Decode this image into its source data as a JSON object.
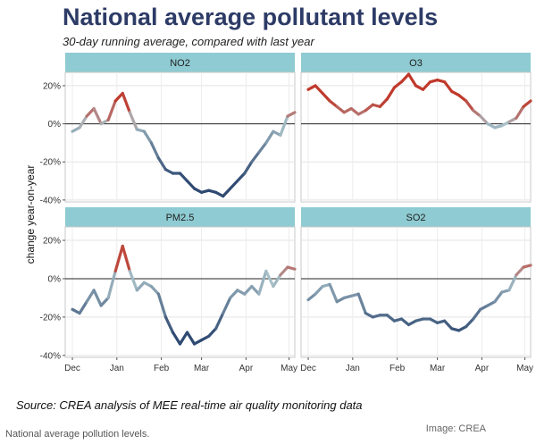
{
  "header": {
    "title": "National average pollutant levels",
    "subtitle": "30-day running average, compared with last year"
  },
  "footer": {
    "source": "Source: CREA analysis of MEE real-time air quality monitoring data",
    "caption": "National average pollution levels.",
    "credit": "Image: CREA"
  },
  "chart_data": {
    "type": "line",
    "ylabel": "change year-on-year",
    "ylim": [
      -0.41,
      0.27
    ],
    "yticks": [
      0.2,
      0,
      -0.2,
      -0.4
    ],
    "ytick_labels": [
      "20%",
      "0%",
      "-20%",
      "-40%"
    ],
    "xlim": [
      0,
      160
    ],
    "xticks": [
      5,
      36,
      67,
      95,
      126,
      156
    ],
    "xtick_labels": [
      "Dec",
      "Jan",
      "Feb",
      "Mar",
      "Apr",
      "May"
    ],
    "color_scale": {
      "low": "#2f4a72",
      "mid": "#a8c0c8",
      "high": "#c0392b"
    },
    "zero_line": true,
    "panels": [
      {
        "name": "NO2",
        "x": [
          5,
          10,
          15,
          20,
          25,
          30,
          35,
          40,
          45,
          50,
          55,
          60,
          65,
          70,
          75,
          80,
          85,
          90,
          95,
          100,
          105,
          110,
          115,
          120,
          125,
          130,
          135,
          140,
          145,
          150,
          155,
          160
        ],
        "y": [
          -0.04,
          -0.02,
          0.04,
          0.08,
          0.0,
          0.02,
          0.12,
          0.16,
          0.06,
          -0.03,
          -0.04,
          -0.1,
          -0.18,
          -0.24,
          -0.26,
          -0.26,
          -0.3,
          -0.34,
          -0.36,
          -0.35,
          -0.36,
          -0.38,
          -0.34,
          -0.3,
          -0.26,
          -0.2,
          -0.15,
          -0.1,
          -0.04,
          -0.06,
          0.04,
          0.06
        ]
      },
      {
        "name": "O3",
        "x": [
          5,
          10,
          15,
          20,
          25,
          30,
          35,
          40,
          45,
          50,
          55,
          60,
          65,
          70,
          75,
          80,
          85,
          90,
          95,
          100,
          105,
          110,
          115,
          120,
          125,
          130,
          135,
          140,
          145,
          150,
          155,
          160
        ],
        "y": [
          0.18,
          0.2,
          0.16,
          0.12,
          0.09,
          0.06,
          0.08,
          0.05,
          0.07,
          0.1,
          0.09,
          0.13,
          0.19,
          0.22,
          0.26,
          0.2,
          0.18,
          0.22,
          0.23,
          0.22,
          0.17,
          0.15,
          0.12,
          0.07,
          0.04,
          0.0,
          -0.02,
          -0.01,
          0.01,
          0.03,
          0.09,
          0.12
        ]
      },
      {
        "name": "PM2.5",
        "x": [
          5,
          10,
          15,
          20,
          25,
          30,
          35,
          40,
          45,
          50,
          55,
          60,
          65,
          70,
          75,
          80,
          85,
          90,
          95,
          100,
          105,
          110,
          115,
          120,
          125,
          130,
          135,
          140,
          145,
          150,
          155,
          160
        ],
        "y": [
          -0.16,
          -0.18,
          -0.12,
          -0.06,
          -0.14,
          -0.1,
          0.04,
          0.17,
          0.04,
          -0.06,
          -0.02,
          -0.04,
          -0.08,
          -0.2,
          -0.28,
          -0.34,
          -0.28,
          -0.34,
          -0.32,
          -0.3,
          -0.26,
          -0.18,
          -0.1,
          -0.06,
          -0.08,
          -0.04,
          -0.08,
          0.04,
          -0.04,
          0.02,
          0.06,
          0.05
        ]
      },
      {
        "name": "SO2",
        "x": [
          5,
          10,
          15,
          20,
          25,
          30,
          35,
          40,
          45,
          50,
          55,
          60,
          65,
          70,
          75,
          80,
          85,
          90,
          95,
          100,
          105,
          110,
          115,
          120,
          125,
          130,
          135,
          140,
          145,
          150,
          155,
          160
        ],
        "y": [
          -0.11,
          -0.08,
          -0.04,
          -0.03,
          -0.12,
          -0.1,
          -0.09,
          -0.08,
          -0.18,
          -0.2,
          -0.19,
          -0.19,
          -0.22,
          -0.21,
          -0.24,
          -0.22,
          -0.21,
          -0.21,
          -0.23,
          -0.22,
          -0.26,
          -0.27,
          -0.25,
          -0.21,
          -0.16,
          -0.14,
          -0.12,
          -0.07,
          -0.06,
          0.02,
          0.06,
          0.07
        ]
      }
    ]
  }
}
